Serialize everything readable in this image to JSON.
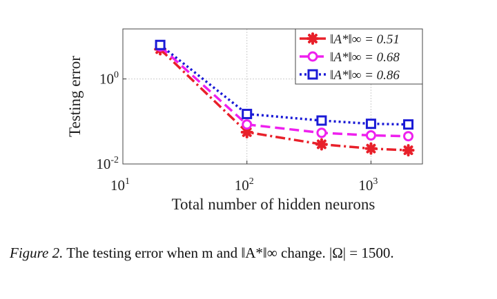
{
  "chart_data": {
    "type": "line",
    "ylabel": "Testing error",
    "xlabel": "Total number of hidden neurons",
    "x": [
      20,
      100,
      400,
      1000,
      2000
    ],
    "xscale": "log",
    "yscale": "log",
    "xlim": [
      10,
      2600
    ],
    "ylim": [
      0.01,
      15
    ],
    "xticks": [
      {
        "value": 10,
        "label": "10^1"
      },
      {
        "value": 100,
        "label": "10^2"
      },
      {
        "value": 1000,
        "label": "10^3"
      }
    ],
    "yticks": [
      {
        "value": 0.01,
        "label": "10^-2"
      },
      {
        "value": 1,
        "label": "10^0"
      }
    ],
    "grid": true,
    "legend": "upper right",
    "series": [
      {
        "name": "‖A*‖∞ = 0.51",
        "color": "#e8202a",
        "dash": "dashdot",
        "marker": "asterisk",
        "values": [
          5.0,
          0.056,
          0.029,
          0.023,
          0.021
        ]
      },
      {
        "name": "‖A*‖∞ = 0.68",
        "color": "#ee20ee",
        "dash": "dashed",
        "marker": "circle",
        "values": [
          5.8,
          0.085,
          0.054,
          0.047,
          0.045
        ]
      },
      {
        "name": "‖A*‖∞ = 0.86",
        "color": "#1a1ad6",
        "dash": "dotted",
        "marker": "square",
        "values": [
          6.3,
          0.15,
          0.105,
          0.088,
          0.085
        ]
      }
    ],
    "caption_label": "Figure 2.",
    "caption": "The testing error when m and ‖A*‖∞ change. |Ω| = 1500."
  }
}
